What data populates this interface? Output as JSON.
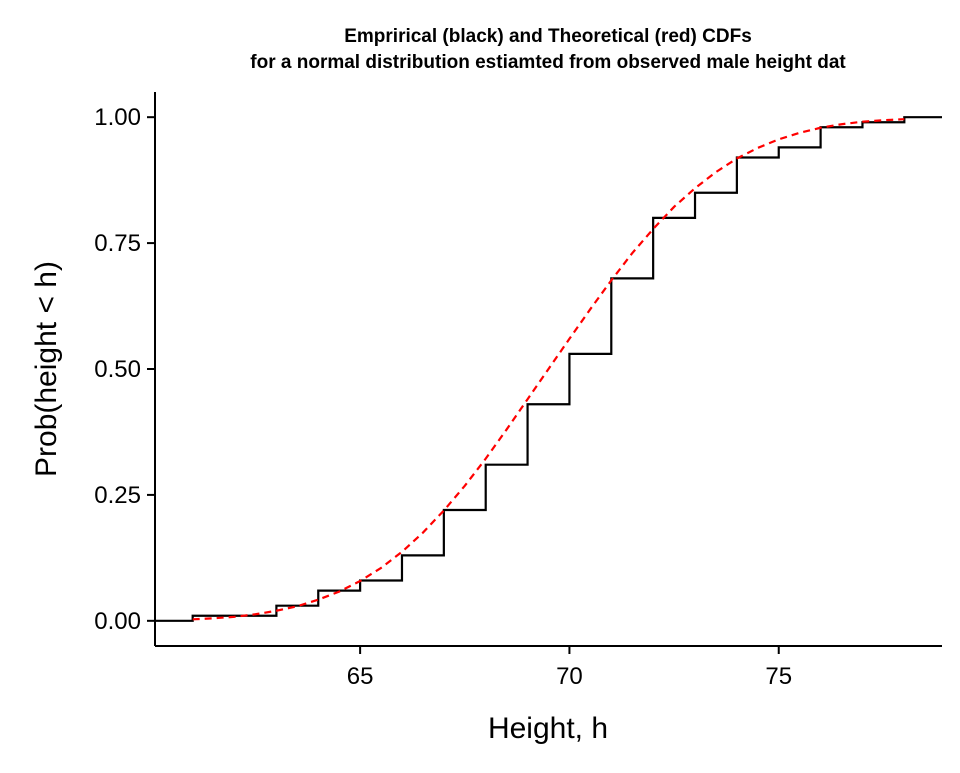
{
  "chart_data": {
    "type": "line",
    "title": "Emprirical (black) and Theoretical (red) CDFs",
    "subtitle": "for a normal distribution estiamted from observed male height dat",
    "xlabel": "Height, h",
    "ylabel": "Prob(height < h)",
    "xlim": [
      60.1,
      78.9
    ],
    "ylim": [
      -0.05,
      1.05
    ],
    "x_ticks": [
      65,
      70,
      75
    ],
    "y_ticks": [
      0.0,
      0.25,
      0.5,
      0.75,
      1.0
    ],
    "x_tick_labels": [
      "65",
      "70",
      "75"
    ],
    "y_tick_labels": [
      "0.00",
      "0.25",
      "0.50",
      "0.75",
      "1.00"
    ],
    "grid": false,
    "legend": "none",
    "series": [
      {
        "style": "step",
        "color": "#000000",
        "dash": "solid",
        "x": [
          60.1,
          61,
          62,
          63,
          64,
          65,
          66,
          67,
          68,
          69,
          70,
          71,
          72,
          73,
          74,
          75,
          76,
          77,
          78,
          78.9
        ],
        "y": [
          0.0,
          0.01,
          0.01,
          0.03,
          0.06,
          0.08,
          0.13,
          0.22,
          0.31,
          0.43,
          0.53,
          0.68,
          0.8,
          0.85,
          0.92,
          0.94,
          0.98,
          0.99,
          1.0,
          1.0
        ]
      },
      {
        "style": "line",
        "color": "#ff0000",
        "dash": "dashed",
        "x": [
          61,
          61.5,
          62,
          62.5,
          63,
          63.5,
          64,
          64.5,
          65,
          65.5,
          66,
          66.5,
          67,
          67.5,
          68,
          68.5,
          69,
          69.5,
          70,
          70.5,
          71,
          71.5,
          72,
          72.5,
          73,
          73.5,
          74,
          74.5,
          75,
          75.5,
          76,
          76.5,
          77,
          77.5,
          78
        ],
        "y": [
          0.003,
          0.005,
          0.008,
          0.013,
          0.02,
          0.029,
          0.042,
          0.058,
          0.079,
          0.105,
          0.137,
          0.175,
          0.219,
          0.268,
          0.322,
          0.38,
          0.44,
          0.5,
          0.56,
          0.619,
          0.676,
          0.73,
          0.778,
          0.822,
          0.859,
          0.891,
          0.918,
          0.939,
          0.956,
          0.969,
          0.979,
          0.986,
          0.991,
          0.994,
          0.996
        ]
      }
    ]
  }
}
